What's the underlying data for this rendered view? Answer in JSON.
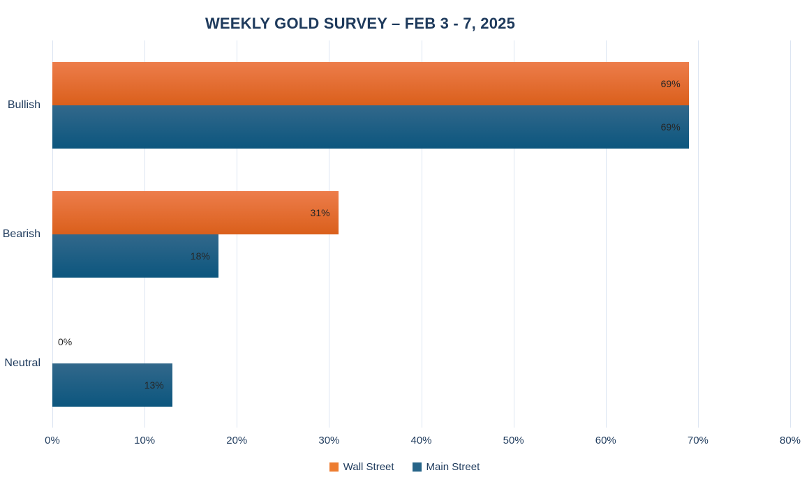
{
  "title": "WEEKLY GOLD SURVEY – FEB 3 - 7, 2025",
  "chart_data": {
    "type": "bar",
    "orientation": "horizontal",
    "title": "WEEKLY GOLD SURVEY – FEB 3 - 7, 2025",
    "categories": [
      "Bullish",
      "Bearish",
      "Neutral"
    ],
    "series": [
      {
        "name": "Wall Street",
        "values": [
          69,
          31,
          0
        ],
        "color": "#ED7D31",
        "gradient_top": "#ED7D4B",
        "gradient_bottom": "#DA5F1B"
      },
      {
        "name": "Main Street",
        "values": [
          69,
          18,
          13
        ],
        "color": "#266488",
        "gradient_top": "#32688B",
        "gradient_bottom": "#0C567E"
      }
    ],
    "value_labels": [
      [
        "69%",
        "31%",
        "0%"
      ],
      [
        "69%",
        "18%",
        "13%"
      ]
    ],
    "value_suffix": "%",
    "xlabel": "",
    "ylabel": "",
    "xlim": [
      0,
      80
    ],
    "x_ticks": [
      "0%",
      "10%",
      "20%",
      "30%",
      "40%",
      "50%",
      "60%",
      "70%",
      "80%"
    ],
    "grid": "vertical",
    "legend_position": "bottom",
    "legend": [
      "Wall Street",
      "Main Street"
    ]
  },
  "colors": {
    "title_text": "#1E3A5C",
    "axis_text": "#1E3A5C",
    "value_label_text": "#262626",
    "gridline": "#DCE5F2",
    "background": "#FFFFFF"
  }
}
